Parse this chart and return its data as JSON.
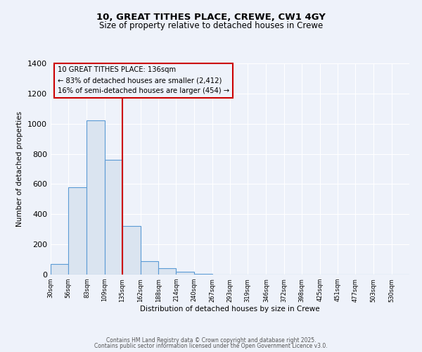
{
  "title1": "10, GREAT TITHES PLACE, CREWE, CW1 4GY",
  "title2": "Size of property relative to detached houses in Crewe",
  "xlabel": "Distribution of detached houses by size in Crewe",
  "ylabel": "Number of detached properties",
  "bar_edge_color": "#5b9bd5",
  "bar_face_color": "#dae4f0",
  "background_color": "#eef2fa",
  "grid_color": "#ffffff",
  "bin_edges": [
    30,
    56,
    83,
    109,
    135,
    162,
    188,
    214,
    240,
    267,
    293,
    319,
    346,
    372,
    398,
    425,
    451,
    477,
    503,
    530,
    556
  ],
  "bar_heights": [
    70,
    580,
    1020,
    760,
    320,
    90,
    40,
    20,
    5,
    0,
    0,
    0,
    0,
    0,
    0,
    0,
    0,
    0,
    0,
    0
  ],
  "red_line_x": 135,
  "ylim": [
    0,
    1400
  ],
  "yticks": [
    0,
    200,
    400,
    600,
    800,
    1000,
    1200,
    1400
  ],
  "annotation_text": "10 GREAT TITHES PLACE: 136sqm\n← 83% of detached houses are smaller (2,412)\n16% of semi-detached houses are larger (454) →",
  "annotation_color": "#cc0000",
  "footer1": "Contains HM Land Registry data © Crown copyright and database right 2025.",
  "footer2": "Contains public sector information licensed under the Open Government Licence v3.0."
}
